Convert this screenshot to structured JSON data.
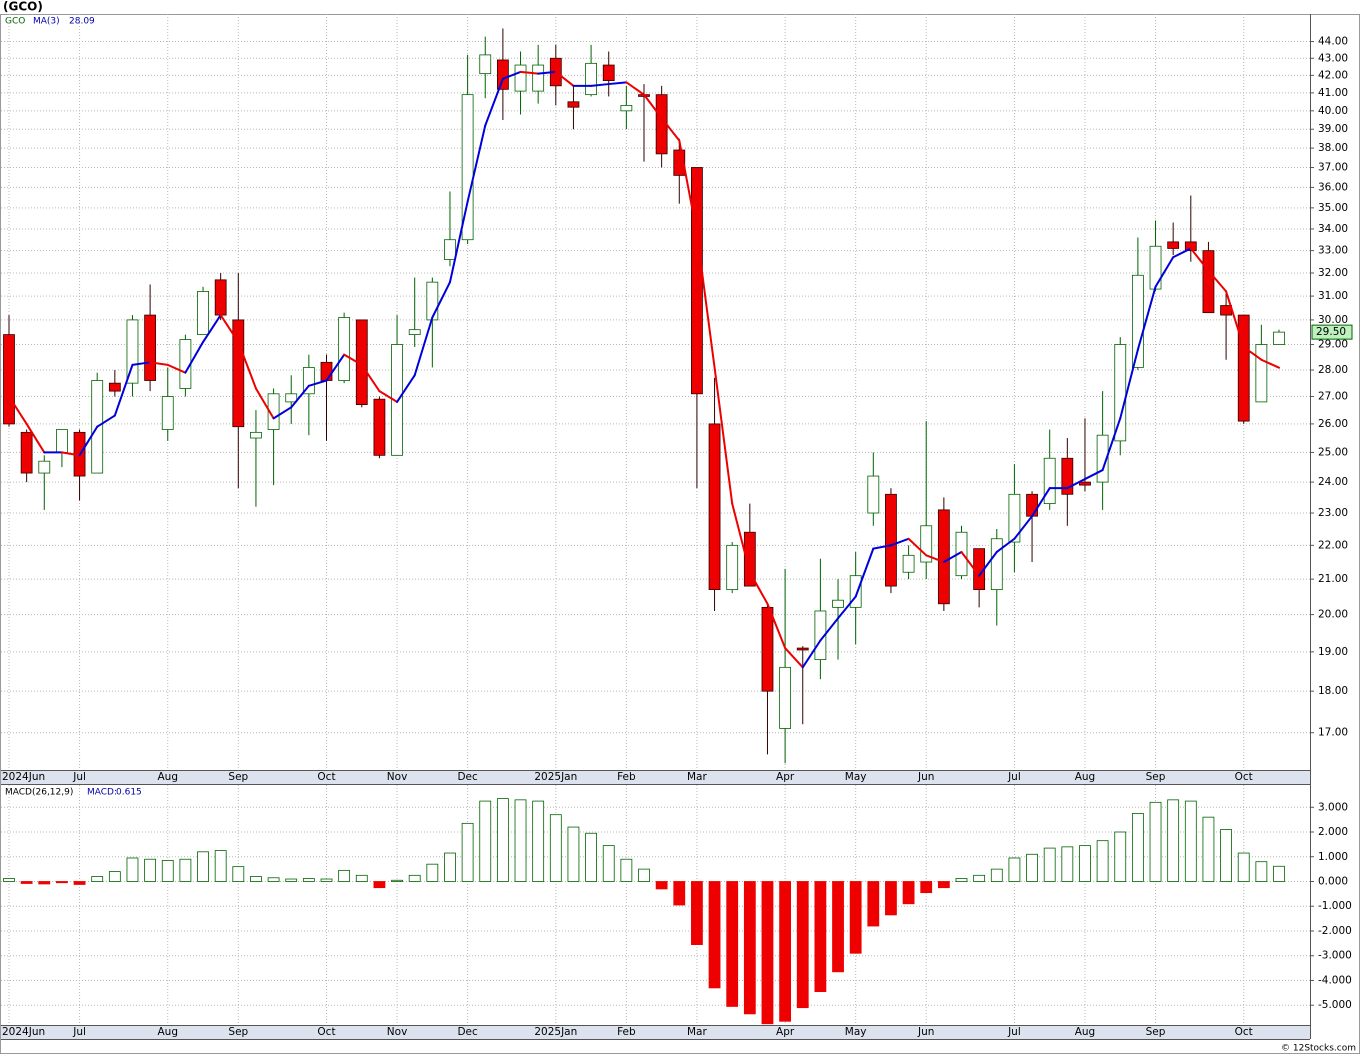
{
  "page": {
    "title": "(GCO)",
    "credit": "© 12Stocks.com"
  },
  "chart_data": [
    {
      "type": "candlestick",
      "name": "GCO",
      "log": true,
      "grid": true,
      "up_color": "#006400",
      "down_color": "#ee0000",
      "categories": [
        "2024Jun",
        null,
        null,
        null,
        "Jul",
        null,
        null,
        null,
        null,
        "Aug",
        null,
        null,
        null,
        "Sep",
        null,
        null,
        null,
        null,
        "Oct",
        null,
        null,
        null,
        "Nov",
        null,
        null,
        null,
        "Dec",
        null,
        null,
        null,
        null,
        "2025Jan",
        null,
        null,
        null,
        "Feb",
        null,
        null,
        null,
        "Mar",
        null,
        null,
        null,
        null,
        "Apr",
        null,
        null,
        null,
        "May",
        null,
        null,
        null,
        "Jun",
        null,
        null,
        null,
        null,
        "Jul",
        null,
        null,
        null,
        "Aug",
        null,
        null,
        null,
        "Sep",
        null,
        null,
        null,
        null,
        "Oct",
        null,
        null
      ],
      "open": [
        29.4,
        25.7,
        24.3,
        25.0,
        25.7,
        24.3,
        27.5,
        27.5,
        30.2,
        25.8,
        27.3,
        29.4,
        31.7,
        30.0,
        25.5,
        25.8,
        26.8,
        27.1,
        28.3,
        27.6,
        30.0,
        26.9,
        24.9,
        29.4,
        30.0,
        32.6,
        33.5,
        42.1,
        42.9,
        41.1,
        41.1,
        43.0,
        40.5,
        40.9,
        42.6,
        40.0,
        40.9,
        40.9,
        37.9,
        37.0,
        26.0,
        20.7,
        22.4,
        20.2,
        17.1,
        19.1,
        18.8,
        20.2,
        20.2,
        23.0,
        23.6,
        21.2,
        21.5,
        23.1,
        21.1,
        21.9,
        20.7,
        22.1,
        23.6,
        23.3,
        24.8,
        24.0,
        24.0,
        25.4,
        28.1,
        31.3,
        33.4,
        33.4,
        33.0,
        30.6,
        30.2,
        26.8,
        29.0
      ],
      "high": [
        30.2,
        25.8,
        24.9,
        25.8,
        25.8,
        27.9,
        28.0,
        30.2,
        31.5,
        28.1,
        29.4,
        31.4,
        32.0,
        32.0,
        26.5,
        27.3,
        27.8,
        28.6,
        28.6,
        30.3,
        30.0,
        27.0,
        30.2,
        31.8,
        31.8,
        35.8,
        43.2,
        44.3,
        44.8,
        43.4,
        43.8,
        43.8,
        41.4,
        43.8,
        43.4,
        41.4,
        41.5,
        41.4,
        38.5,
        37.0,
        27.7,
        22.1,
        23.3,
        20.3,
        21.3,
        19.15,
        21.6,
        21.0,
        21.8,
        25.0,
        23.8,
        22.0,
        26.1,
        23.5,
        22.6,
        21.9,
        22.5,
        24.6,
        23.7,
        25.8,
        25.5,
        26.2,
        27.2,
        29.3,
        33.6,
        34.4,
        34.3,
        35.6,
        33.4,
        31.1,
        30.2,
        29.8,
        29.6
      ],
      "low": [
        25.9,
        24.0,
        23.1,
        24.5,
        23.4,
        24.3,
        27.0,
        27.0,
        27.2,
        25.4,
        27.0,
        29.4,
        30.0,
        23.8,
        23.2,
        23.9,
        26.0,
        25.6,
        25.4,
        27.5,
        26.6,
        24.8,
        24.9,
        28.9,
        28.1,
        32.3,
        33.3,
        40.7,
        39.5,
        39.8,
        40.4,
        40.3,
        39.0,
        40.8,
        40.8,
        39.0,
        37.3,
        37.0,
        35.2,
        23.8,
        20.1,
        20.6,
        20.8,
        16.5,
        16.3,
        17.2,
        18.3,
        18.8,
        19.2,
        22.6,
        20.6,
        21.0,
        21.0,
        20.1,
        21.0,
        20.2,
        19.7,
        21.2,
        21.5,
        23.1,
        22.6,
        23.7,
        23.1,
        24.9,
        28.0,
        31.2,
        32.8,
        32.5,
        30.3,
        28.4,
        26.0,
        26.8,
        29.0
      ],
      "close": [
        26.0,
        24.3,
        24.7,
        25.8,
        24.2,
        27.6,
        27.2,
        30.0,
        27.6,
        27.0,
        29.2,
        31.2,
        30.2,
        25.9,
        25.7,
        27.1,
        27.1,
        28.1,
        27.6,
        30.1,
        26.7,
        24.9,
        29.0,
        29.6,
        31.6,
        33.5,
        40.9,
        43.2,
        41.2,
        42.6,
        42.6,
        41.4,
        40.2,
        42.7,
        41.7,
        40.3,
        40.8,
        37.7,
        36.6,
        27.1,
        20.7,
        22.0,
        20.8,
        18.0,
        18.6,
        19.05,
        20.1,
        20.4,
        21.1,
        24.2,
        20.8,
        21.7,
        22.6,
        20.3,
        22.4,
        20.7,
        22.2,
        23.6,
        22.9,
        24.8,
        23.6,
        23.9,
        25.6,
        29.0,
        31.9,
        33.2,
        33.1,
        33.0,
        30.3,
        30.2,
        26.1,
        29.0,
        29.5
      ],
      "ma": {
        "name": "MA(3)",
        "up_color": "#0000dd",
        "down_color": "#ee0000",
        "values": [
          27.0,
          26.0,
          25.0,
          25.0,
          24.9,
          25.9,
          26.3,
          28.2,
          28.3,
          28.2,
          27.9,
          29.1,
          30.2,
          29.1,
          27.3,
          26.2,
          26.6,
          27.4,
          27.6,
          28.6,
          28.2,
          27.2,
          26.8,
          27.8,
          30.1,
          31.6,
          35.3,
          39.2,
          41.8,
          42.2,
          42.1,
          42.2,
          41.4,
          41.4,
          41.5,
          41.6,
          40.9,
          39.6,
          38.4,
          33.8,
          28.1,
          23.3,
          21.2,
          20.3,
          19.1,
          18.6,
          19.3,
          19.9,
          20.5,
          21.9,
          22.0,
          22.2,
          21.7,
          21.5,
          21.8,
          21.1,
          21.8,
          22.2,
          22.9,
          23.8,
          23.8,
          24.1,
          24.4,
          26.2,
          28.8,
          31.4,
          32.7,
          33.1,
          32.1,
          31.2,
          28.9,
          28.4,
          28.09
        ]
      },
      "last_price": {
        "value": 29.5,
        "label": "29.50"
      },
      "ylim": [
        16.15,
        45.7
      ],
      "yticks": [
        {
          "value": 17,
          "label": "17.00"
        },
        {
          "value": 18,
          "label": "18.00"
        },
        {
          "value": 19,
          "label": "19.00"
        },
        {
          "value": 20,
          "label": "20.00"
        },
        {
          "value": 21,
          "label": "21.00"
        },
        {
          "value": 22,
          "label": "22.00"
        },
        {
          "value": 23,
          "label": "23.00"
        },
        {
          "value": 24,
          "label": "24.00"
        },
        {
          "value": 25,
          "label": "25.00"
        },
        {
          "value": 26,
          "label": "26.00"
        },
        {
          "value": 27,
          "label": "27.00"
        },
        {
          "value": 28,
          "label": "28.00"
        },
        {
          "value": 29,
          "label": "29.00"
        },
        {
          "value": 30,
          "label": "30.00"
        },
        {
          "value": 31,
          "label": "31.00"
        },
        {
          "value": 32,
          "label": "32.00"
        },
        {
          "value": 33,
          "label": "33.00"
        },
        {
          "value": 34,
          "label": "34.00"
        },
        {
          "value": 35,
          "label": "35.00"
        },
        {
          "value": 36,
          "label": "36.00"
        },
        {
          "value": 37,
          "label": "37.00"
        },
        {
          "value": 38,
          "label": "38.00"
        },
        {
          "value": 39,
          "label": "39.00"
        },
        {
          "value": 40,
          "label": "40.00"
        },
        {
          "value": 41,
          "label": "41.00"
        },
        {
          "value": 42,
          "label": "42.00"
        },
        {
          "value": 43,
          "label": "43.00"
        },
        {
          "value": 44,
          "label": "44.00"
        }
      ]
    },
    {
      "type": "bar",
      "name": "MACD(26,12,9)",
      "value_name": "MACD:",
      "grid": true,
      "up_color": "#006400",
      "down_color": "#ee0000",
      "values": [
        0.12,
        -0.08,
        -0.1,
        -0.05,
        -0.12,
        0.2,
        0.4,
        0.95,
        0.9,
        0.85,
        0.9,
        1.2,
        1.25,
        0.6,
        0.2,
        0.15,
        0.1,
        0.12,
        0.1,
        0.45,
        0.25,
        -0.25,
        0.05,
        0.25,
        0.7,
        1.15,
        2.35,
        3.25,
        3.35,
        3.3,
        3.25,
        2.7,
        2.2,
        1.95,
        1.45,
        0.9,
        0.5,
        -0.3,
        -0.95,
        -2.55,
        -4.3,
        -5.05,
        -5.35,
        -5.75,
        -5.65,
        -5.1,
        -4.45,
        -3.65,
        -2.9,
        -1.8,
        -1.35,
        -0.9,
        -0.45,
        -0.25,
        0.12,
        0.25,
        0.5,
        0.95,
        1.1,
        1.35,
        1.4,
        1.45,
        1.65,
        2.0,
        2.75,
        3.2,
        3.3,
        3.25,
        2.6,
        2.1,
        1.15,
        0.8,
        0.615
      ],
      "ylim": [
        -5.8,
        3.9
      ],
      "yticks": [
        {
          "value": 3,
          "label": "3.000"
        },
        {
          "value": 2,
          "label": "2.000"
        },
        {
          "value": 1,
          "label": "1.000"
        },
        {
          "value": 0,
          "label": "0.000"
        },
        {
          "value": -1,
          "label": "-1.000"
        },
        {
          "value": -2,
          "label": "-2.000"
        },
        {
          "value": -3,
          "label": "-3.000"
        },
        {
          "value": -4,
          "label": "-4.000"
        },
        {
          "value": -5,
          "label": "-5.000"
        }
      ]
    }
  ]
}
